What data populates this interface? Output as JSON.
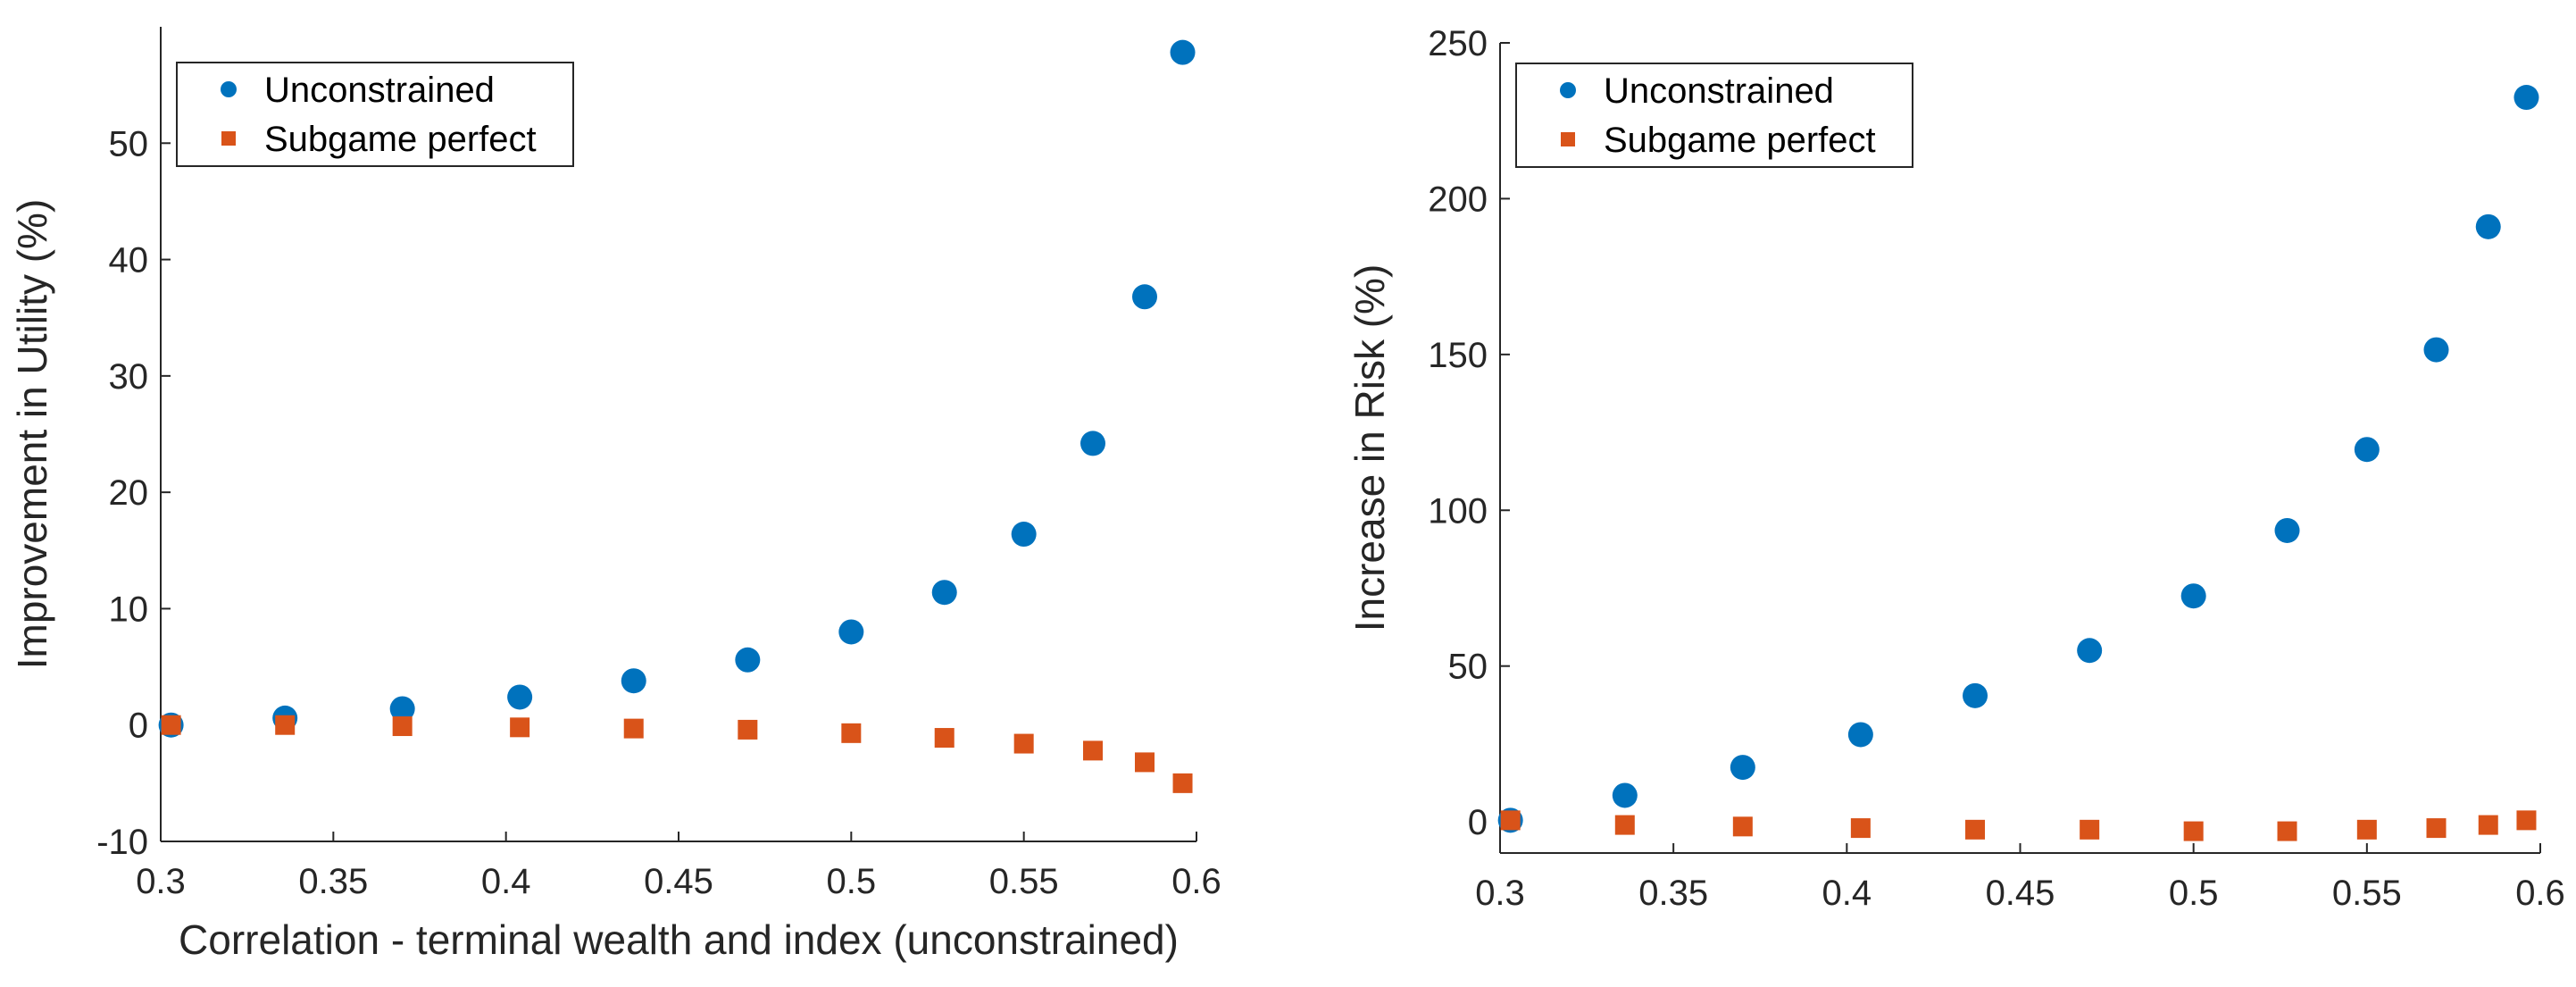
{
  "chart_data": [
    {
      "type": "scatter",
      "title": "",
      "xlabel": "Correlation - terminal wealth and index (unconstrained)",
      "ylabel": "Improvement in Utility (%)",
      "xlim": [
        0.3,
        0.6
      ],
      "ylim": [
        -10,
        60
      ],
      "xticks": [
        0.3,
        0.35,
        0.4,
        0.45,
        0.5,
        0.55,
        0.6
      ],
      "xtick_labels": [
        "0.3",
        "0.35",
        "0.4",
        "0.45",
        "0.5",
        "0.55",
        "0.6"
      ],
      "yticks": [
        -10,
        0,
        10,
        20,
        30,
        40,
        50
      ],
      "ytick_labels": [
        "-10",
        "0",
        "10",
        "20",
        "30",
        "40",
        "50"
      ],
      "legend_position": "top-left",
      "series": [
        {
          "name": "Unconstrained",
          "marker": "circle",
          "color": "#0072BD",
          "x": [
            0.303,
            0.336,
            0.37,
            0.404,
            0.437,
            0.47,
            0.5,
            0.527,
            0.55,
            0.57,
            0.585,
            0.596
          ],
          "y": [
            0.0,
            0.6,
            1.4,
            2.4,
            3.8,
            5.6,
            8.0,
            11.4,
            16.4,
            24.2,
            36.8,
            57.8
          ]
        },
        {
          "name": "Subgame perfect",
          "marker": "square",
          "color": "#D95319",
          "x": [
            0.303,
            0.336,
            0.37,
            0.404,
            0.437,
            0.47,
            0.5,
            0.527,
            0.55,
            0.57,
            0.585,
            0.596
          ],
          "y": [
            0.0,
            0.0,
            -0.1,
            -0.2,
            -0.3,
            -0.4,
            -0.7,
            -1.1,
            -1.6,
            -2.2,
            -3.2,
            -5.0
          ]
        }
      ]
    },
    {
      "type": "scatter",
      "title": "",
      "xlabel": "",
      "ylabel": "Increase in Risk (%)",
      "xlim": [
        0.3,
        0.6
      ],
      "ylim": [
        -10,
        250
      ],
      "xticks": [
        0.3,
        0.35,
        0.4,
        0.45,
        0.5,
        0.55,
        0.6
      ],
      "xtick_labels": [
        "0.3",
        "0.35",
        "0.4",
        "0.45",
        "0.5",
        "0.55",
        "0.6"
      ],
      "yticks": [
        0,
        50,
        100,
        150,
        200,
        250
      ],
      "ytick_labels": [
        "0",
        "50",
        "100",
        "150",
        "200",
        "250"
      ],
      "legend_position": "top-left",
      "series": [
        {
          "name": "Unconstrained",
          "marker": "circle",
          "color": "#0072BD",
          "x": [
            0.303,
            0.336,
            0.37,
            0.404,
            0.437,
            0.47,
            0.5,
            0.527,
            0.55,
            0.57,
            0.585,
            0.596
          ],
          "y": [
            0.5,
            8.5,
            17.5,
            28.0,
            40.5,
            55.0,
            72.5,
            93.5,
            119.5,
            151.5,
            191.0,
            232.5
          ]
        },
        {
          "name": "Subgame perfect",
          "marker": "square",
          "color": "#D95319",
          "x": [
            0.303,
            0.336,
            0.37,
            0.404,
            0.437,
            0.47,
            0.5,
            0.527,
            0.55,
            0.57,
            0.585,
            0.596
          ],
          "y": [
            0.5,
            -1.0,
            -1.5,
            -2.0,
            -2.5,
            -2.5,
            -3.0,
            -3.0,
            -2.5,
            -2.0,
            -1.0,
            0.5
          ]
        }
      ]
    }
  ]
}
